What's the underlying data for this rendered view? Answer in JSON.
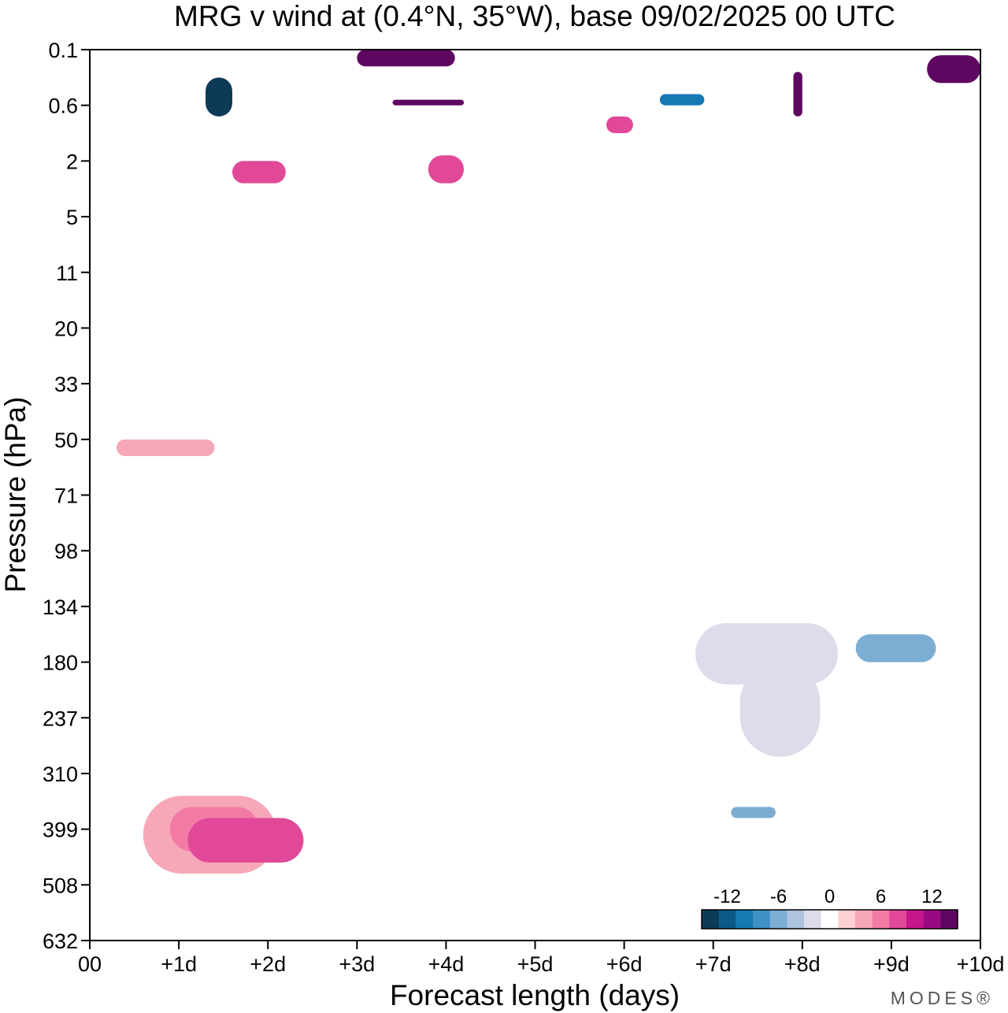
{
  "chart_data": {
    "type": "heatmap",
    "title": "MRG v wind at (0.4°N, 35°W),  base 09/02/2025  00 UTC",
    "xlabel": "Forecast length (days)",
    "ylabel": "Pressure (hPa)",
    "x_ticks": [
      "00",
      "+1d",
      "+2d",
      "+3d",
      "+4d",
      "+5d",
      "+6d",
      "+7d",
      "+8d",
      "+9d",
      "+10d"
    ],
    "xlim": [
      0,
      10
    ],
    "y_ticks": [
      "0.1",
      "0.6",
      "2",
      "5",
      "11",
      "20",
      "33",
      "50",
      "71",
      "98",
      "134",
      "180",
      "237",
      "310",
      "399",
      "508",
      "632"
    ],
    "y_scale": "pressure levels (uniform spacing, top to bottom)",
    "colorbar": {
      "labels": [
        "-12",
        "-6",
        "0",
        "6",
        "12"
      ],
      "levels": [
        -15,
        -13,
        -11,
        -9,
        -7,
        -5,
        -3,
        -1,
        1,
        3,
        5,
        7,
        9,
        11,
        13,
        15
      ],
      "colors": [
        "#0c3a57",
        "#0d5a87",
        "#1779b4",
        "#3e91c4",
        "#7cadd3",
        "#adc3de",
        "#dcdcea",
        "#ffffff",
        "#fdd0d3",
        "#f7a8b8",
        "#f27ba6",
        "#e14898",
        "#c6168c",
        "#990a82",
        "#5e0760"
      ]
    },
    "grid": false,
    "regions": [
      {
        "x": [
          0.6,
          2.1
        ],
        "y": [
          13.4,
          14.8
        ],
        "v": 3
      },
      {
        "x": [
          0.9,
          1.9
        ],
        "y": [
          13.6,
          14.4
        ],
        "v": 5
      },
      {
        "x": [
          1.1,
          2.4
        ],
        "y": [
          13.8,
          14.6
        ],
        "v": 7
      },
      {
        "x": [
          0.3,
          1.4
        ],
        "y": [
          7.0,
          7.3
        ],
        "v": 3
      },
      {
        "x": [
          6.8,
          8.4
        ],
        "y": [
          10.3,
          11.4
        ],
        "v": -3
      },
      {
        "x": [
          7.3,
          8.2
        ],
        "y": [
          11.0,
          12.7
        ],
        "v": -3
      },
      {
        "x": [
          8.6,
          9.5
        ],
        "y": [
          10.5,
          11.0
        ],
        "v": -7
      },
      {
        "x": [
          7.2,
          7.7
        ],
        "y": [
          13.6,
          13.8
        ],
        "v": -7
      },
      {
        "x": [
          1.3,
          1.6
        ],
        "y": [
          0.5,
          1.2
        ],
        "v": -15
      },
      {
        "x": [
          6.4,
          6.9
        ],
        "y": [
          0.8,
          1.0
        ],
        "v": -11
      },
      {
        "x": [
          3.0,
          4.1
        ],
        "y": [
          0.0,
          0.3
        ],
        "v": 13
      },
      {
        "x": [
          3.4,
          4.2
        ],
        "y": [
          0.9,
          1.0
        ],
        "v": 13
      },
      {
        "x": [
          7.9,
          8.0
        ],
        "y": [
          0.4,
          1.2
        ],
        "v": 13
      },
      {
        "x": [
          9.4,
          10.0
        ],
        "y": [
          0.1,
          0.6
        ],
        "v": 13
      },
      {
        "x": [
          5.8,
          6.1
        ],
        "y": [
          1.2,
          1.5
        ],
        "v": 7
      },
      {
        "x": [
          1.6,
          2.2
        ],
        "y": [
          2.0,
          2.4
        ],
        "v": 7
      },
      {
        "x": [
          3.8,
          4.2
        ],
        "y": [
          1.9,
          2.4
        ],
        "v": 7
      }
    ]
  },
  "brand": "MODES®"
}
